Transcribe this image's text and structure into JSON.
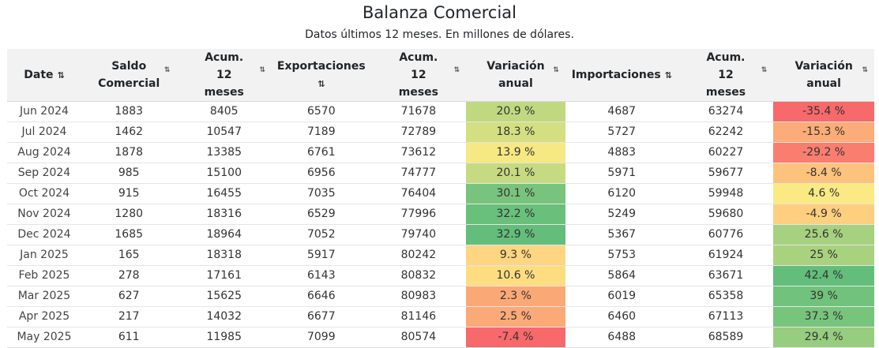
{
  "title": "Balanza Comercial",
  "subtitle": "Datos últimos 12 meses. En millones de dólares.",
  "headers": {
    "date": "Date",
    "saldo": "Saldo Comercial",
    "acum1": "Acum. 12 meses",
    "export": "Exportaciones",
    "acum2": "Acum. 12 meses",
    "var1": "Variación anual",
    "import": "Importaciones",
    "acum3": "Acum. 12 meses",
    "var2": "Variación anual"
  },
  "sort_icon": "⇅",
  "chart_data": {
    "type": "table",
    "title": "Balanza Comercial",
    "subtitle": "Datos últimos 12 meses. En millones de dólares.",
    "columns": [
      "Date",
      "Saldo Comercial",
      "Acum. 12 meses",
      "Exportaciones",
      "Acum. 12 meses",
      "Variación anual",
      "Importaciones",
      "Acum. 12 meses",
      "Variación anual"
    ],
    "rows": [
      {
        "date": "Jun 2024",
        "saldo": "1883",
        "acum_saldo": "8405",
        "export": "6570",
        "acum_export": "71678",
        "var_export": "20.9 %",
        "import": "4687",
        "acum_import": "63274",
        "var_import": "-35.4 %"
      },
      {
        "date": "Jul 2024",
        "saldo": "1462",
        "acum_saldo": "10547",
        "export": "7189",
        "acum_export": "72789",
        "var_export": "18.3 %",
        "import": "5727",
        "acum_import": "62242",
        "var_import": "-15.3 %"
      },
      {
        "date": "Aug 2024",
        "saldo": "1878",
        "acum_saldo": "13385",
        "export": "6761",
        "acum_export": "73612",
        "var_export": "13.9 %",
        "import": "4883",
        "acum_import": "60227",
        "var_import": "-29.2 %"
      },
      {
        "date": "Sep 2024",
        "saldo": "985",
        "acum_saldo": "15100",
        "export": "6956",
        "acum_export": "74777",
        "var_export": "20.1 %",
        "import": "5971",
        "acum_import": "59677",
        "var_import": "-8.4 %"
      },
      {
        "date": "Oct 2024",
        "saldo": "915",
        "acum_saldo": "16455",
        "export": "7035",
        "acum_export": "76404",
        "var_export": "30.1 %",
        "import": "6120",
        "acum_import": "59948",
        "var_import": "4.6 %"
      },
      {
        "date": "Nov 2024",
        "saldo": "1280",
        "acum_saldo": "18316",
        "export": "6529",
        "acum_export": "77996",
        "var_export": "32.2 %",
        "import": "5249",
        "acum_import": "59680",
        "var_import": "-4.9 %"
      },
      {
        "date": "Dec 2024",
        "saldo": "1685",
        "acum_saldo": "18964",
        "export": "7052",
        "acum_export": "79740",
        "var_export": "32.9 %",
        "import": "5367",
        "acum_import": "60776",
        "var_import": "25.6 %"
      },
      {
        "date": "Jan 2025",
        "saldo": "165",
        "acum_saldo": "18318",
        "export": "5917",
        "acum_export": "80242",
        "var_export": "9.3 %",
        "import": "5753",
        "acum_import": "61924",
        "var_import": "25 %"
      },
      {
        "date": "Feb 2025",
        "saldo": "278",
        "acum_saldo": "17161",
        "export": "6143",
        "acum_export": "80832",
        "var_export": "10.6 %",
        "import": "5864",
        "acum_import": "63671",
        "var_import": "42.4 %"
      },
      {
        "date": "Mar 2025",
        "saldo": "627",
        "acum_saldo": "15625",
        "export": "6646",
        "acum_export": "80983",
        "var_export": "2.3 %",
        "import": "6019",
        "acum_import": "65358",
        "var_import": "39 %"
      },
      {
        "date": "Apr 2025",
        "saldo": "217",
        "acum_saldo": "14032",
        "export": "6677",
        "acum_export": "81146",
        "var_export": "2.5 %",
        "import": "6460",
        "acum_import": "67113",
        "var_import": "37.3 %"
      },
      {
        "date": "May 2025",
        "saldo": "611",
        "acum_saldo": "11985",
        "export": "7099",
        "acum_export": "80574",
        "var_export": "-7.4 %",
        "import": "6488",
        "acum_import": "68589",
        "var_import": "29.4 %"
      }
    ],
    "color_scale": {
      "low": "#f8696b",
      "mid": "#ffeb84",
      "high": "#63be7b"
    }
  }
}
